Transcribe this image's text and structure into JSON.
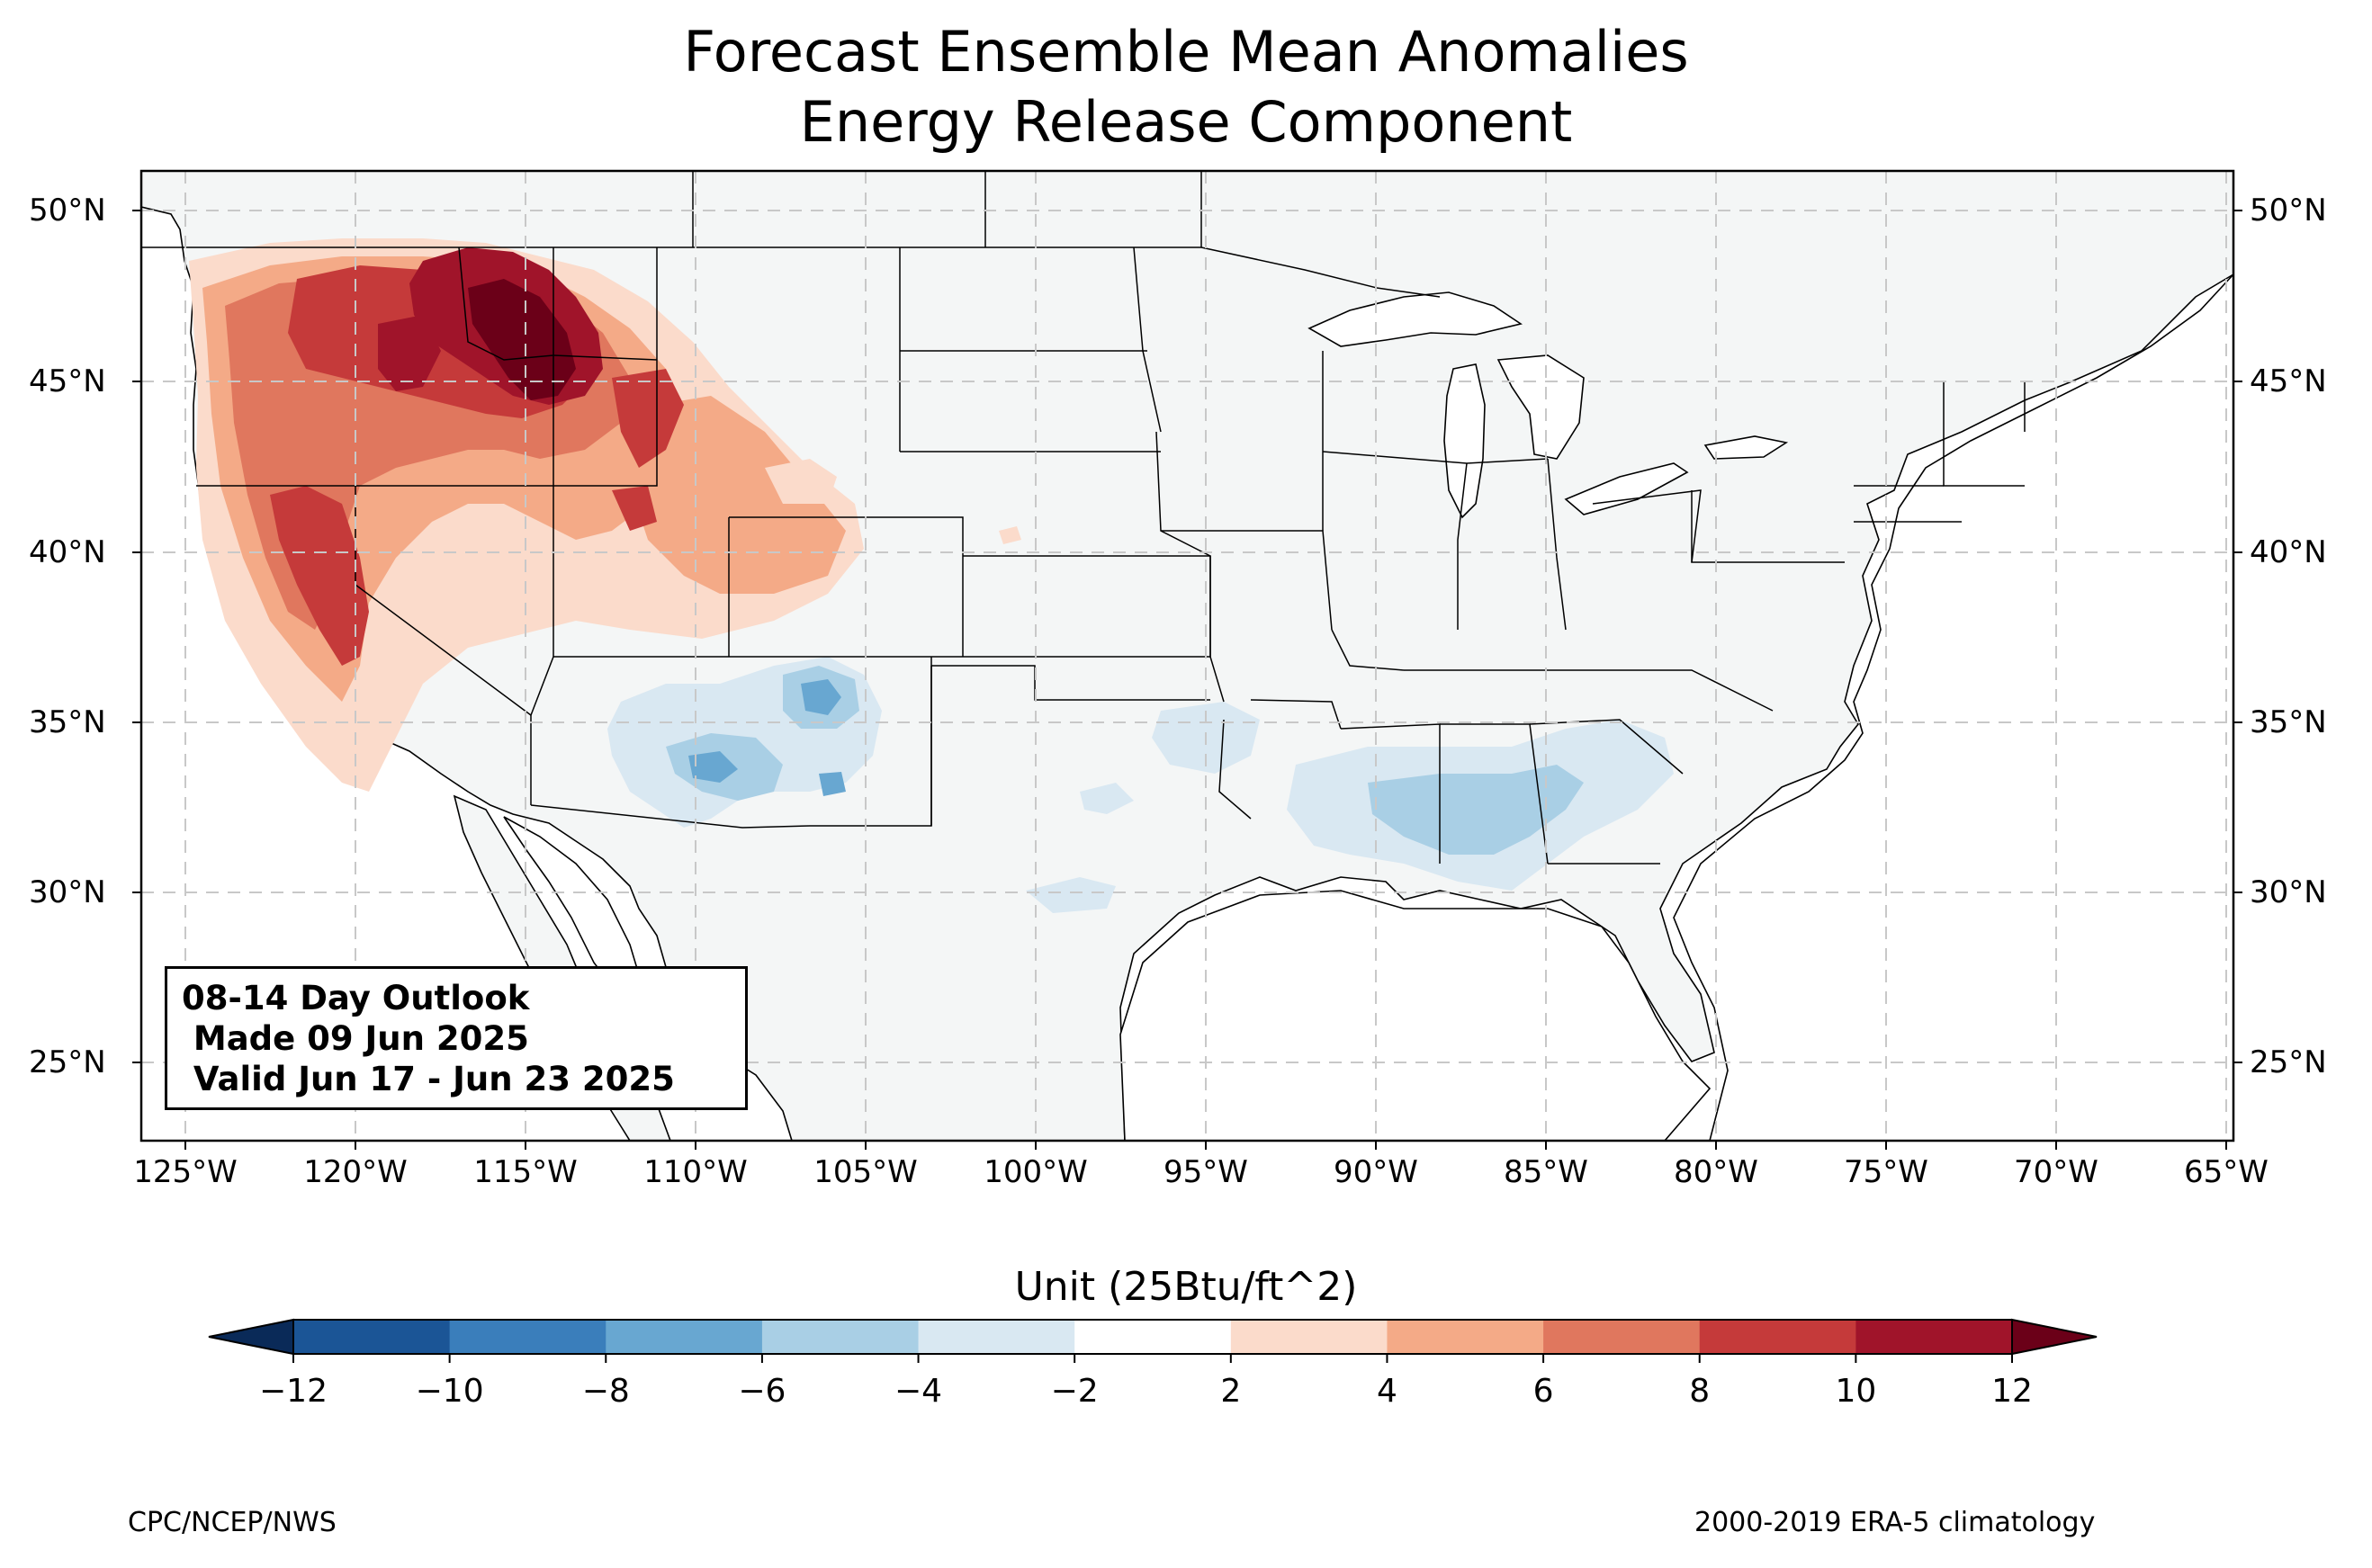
{
  "title": {
    "line1": "Forecast Ensemble Mean Anomalies",
    "line2": "Energy Release Component"
  },
  "map": {
    "projection": "PlateCarree",
    "lon_range": [
      -126.3,
      -64.8
    ],
    "lat_range": [
      22.8,
      51.2
    ],
    "lat_labels": [
      "25°N",
      "30°N",
      "35°N",
      "40°N",
      "45°N",
      "50°N"
    ],
    "lon_labels": [
      "125°W",
      "120°W",
      "115°W",
      "110°W",
      "105°W",
      "100°W",
      "95°W",
      "90°W",
      "85°W",
      "80°W",
      "75°W",
      "70°W",
      "65°W"
    ],
    "gridlines": "dashed light gray every 5 degrees",
    "land_color": "#f4f6f6",
    "anomaly_regions": [
      {
        "region": "Pacific Northwest / Oregon",
        "sign": "positive",
        "magnitude": "4 to 10"
      },
      {
        "region": "Idaho / western Montana",
        "sign": "positive",
        "magnitude": "10 to 12+"
      },
      {
        "region": "Northern California / Nevada (Sierra)",
        "sign": "positive",
        "magnitude": "6 to 10"
      },
      {
        "region": "Wyoming / northern Utah",
        "sign": "positive",
        "magnitude": "4 to 10"
      },
      {
        "region": "Colorado Front Range",
        "sign": "positive",
        "magnitude": "2 to 6"
      },
      {
        "region": "New Mexico / southeast Arizona",
        "sign": "negative",
        "magnitude": "-2 to -8"
      },
      {
        "region": "Gulf Coast: Mississippi / Alabama / Georgia",
        "sign": "negative",
        "magnitude": "-2 to -6"
      },
      {
        "region": "Texas / Oklahoma / Arkansas",
        "sign": "negative",
        "magnitude": "-2 to -4"
      }
    ]
  },
  "infobox": {
    "line1": "08-14 Day Outlook",
    "line2": " Made 09 Jun 2025",
    "line3": " Valid Jun 17 - Jun 23 2025"
  },
  "colorbar": {
    "title": "Unit (25Btu/ft^2)",
    "ticks": [
      "−12",
      "−10",
      "−8",
      "−6",
      "−4",
      "−2",
      "2",
      "4",
      "6",
      "8",
      "10",
      "12"
    ],
    "colors": [
      "#1b5596",
      "#3a7ebb",
      "#68a7d1",
      "#a9cfe5",
      "#d9e8f2",
      "#ffffff",
      "#fbdbcb",
      "#f4aa87",
      "#e0775e",
      "#c53a3a",
      "#a0142a"
    ],
    "under_color": "#0a2a58",
    "over_color": "#6b0018",
    "extend": "both"
  },
  "credits": {
    "left": "CPC/NCEP/NWS",
    "right": "2000-2019 ERA-5 climatology"
  }
}
